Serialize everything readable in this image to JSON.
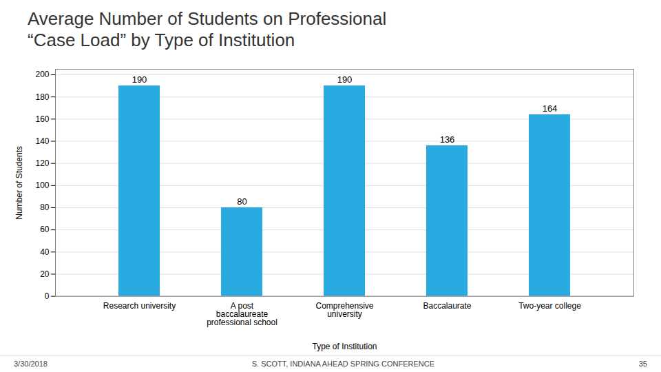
{
  "chart_data": {
    "type": "bar",
    "title": "Average Number of Students on Professional\n“Case Load” by Type of Institution",
    "categories": [
      "Research university",
      "A post\nbaccalaureate\nprofessional school",
      "Comprehensive\nuniversity",
      "Baccalaurate",
      "Two-year college"
    ],
    "values": [
      190,
      80,
      190,
      136,
      164
    ],
    "color": "#29ABE2",
    "xlabel": "Type of Institution",
    "ylabel": "Number of Students",
    "ylim": [
      0,
      205
    ],
    "yticks": [
      0,
      20,
      40,
      60,
      80,
      100,
      120,
      140,
      160,
      180,
      200
    ],
    "grid": true,
    "data_labels": true,
    "annotations": [
      "3/30/2018",
      "S. SCOTT, INDIANA AHEAD SPRING CONFERENCE",
      "35"
    ]
  }
}
